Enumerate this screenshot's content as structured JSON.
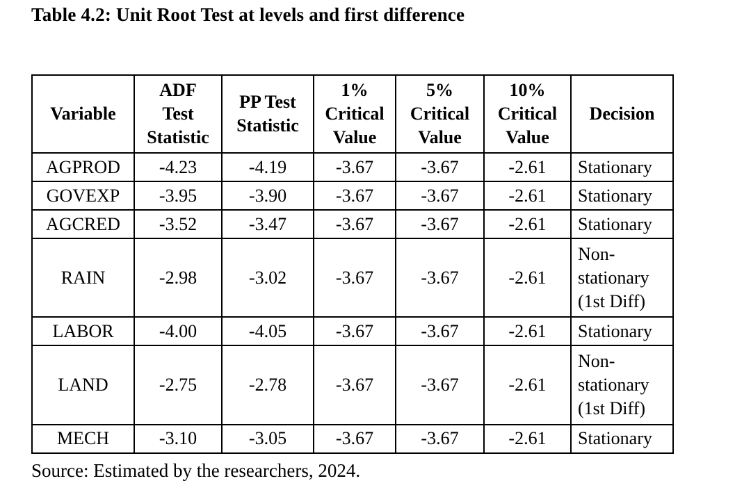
{
  "page": {
    "title": "Table 4.2: Unit Root Test at levels and first difference",
    "source_note": "Source: Estimated by the researchers, 2024."
  },
  "colors": {
    "background": "#ffffff",
    "text": "#000000",
    "table_border": "#000000"
  },
  "table": {
    "headers": [
      "Variable",
      "ADF\nTest\nStatistic",
      "PP Test\nStatistic",
      "1%\nCritical\nValue",
      "5%\nCritical\nValue",
      "10%\nCritical\nValue",
      "Decision"
    ],
    "rows": [
      {
        "variable": "AGPROD",
        "adf": "-4.23",
        "pp": "-4.19",
        "cv1": "-3.67",
        "cv5": "-3.67",
        "cv10": "-2.61",
        "decision": "Stationary"
      },
      {
        "variable": "GOVEXP",
        "adf": "-3.95",
        "pp": "-3.90",
        "cv1": "-3.67",
        "cv5": "-3.67",
        "cv10": "-2.61",
        "decision": "Stationary"
      },
      {
        "variable": "AGCRED",
        "adf": "-3.52",
        "pp": "-3.47",
        "cv1": "-3.67",
        "cv5": "-3.67",
        "cv10": "-2.61",
        "decision": "Stationary"
      },
      {
        "variable": "RAIN",
        "adf": "-2.98",
        "pp": "-3.02",
        "cv1": "-3.67",
        "cv5": "-3.67",
        "cv10": "-2.61",
        "decision": "Non-\nstationary\n(1st Diff)"
      },
      {
        "variable": "LABOR",
        "adf": "-4.00",
        "pp": "-4.05",
        "cv1": "-3.67",
        "cv5": "-3.67",
        "cv10": "-2.61",
        "decision": "Stationary"
      },
      {
        "variable": "LAND",
        "adf": "-2.75",
        "pp": "-2.78",
        "cv1": "-3.67",
        "cv5": "-3.67",
        "cv10": "-2.61",
        "decision": "Non-\nstationary\n(1st Diff)"
      },
      {
        "variable": "MECH",
        "adf": "-3.10",
        "pp": "-3.05",
        "cv1": "-3.67",
        "cv5": "-3.67",
        "cv10": "-2.61",
        "decision": "Stationary"
      }
    ]
  }
}
